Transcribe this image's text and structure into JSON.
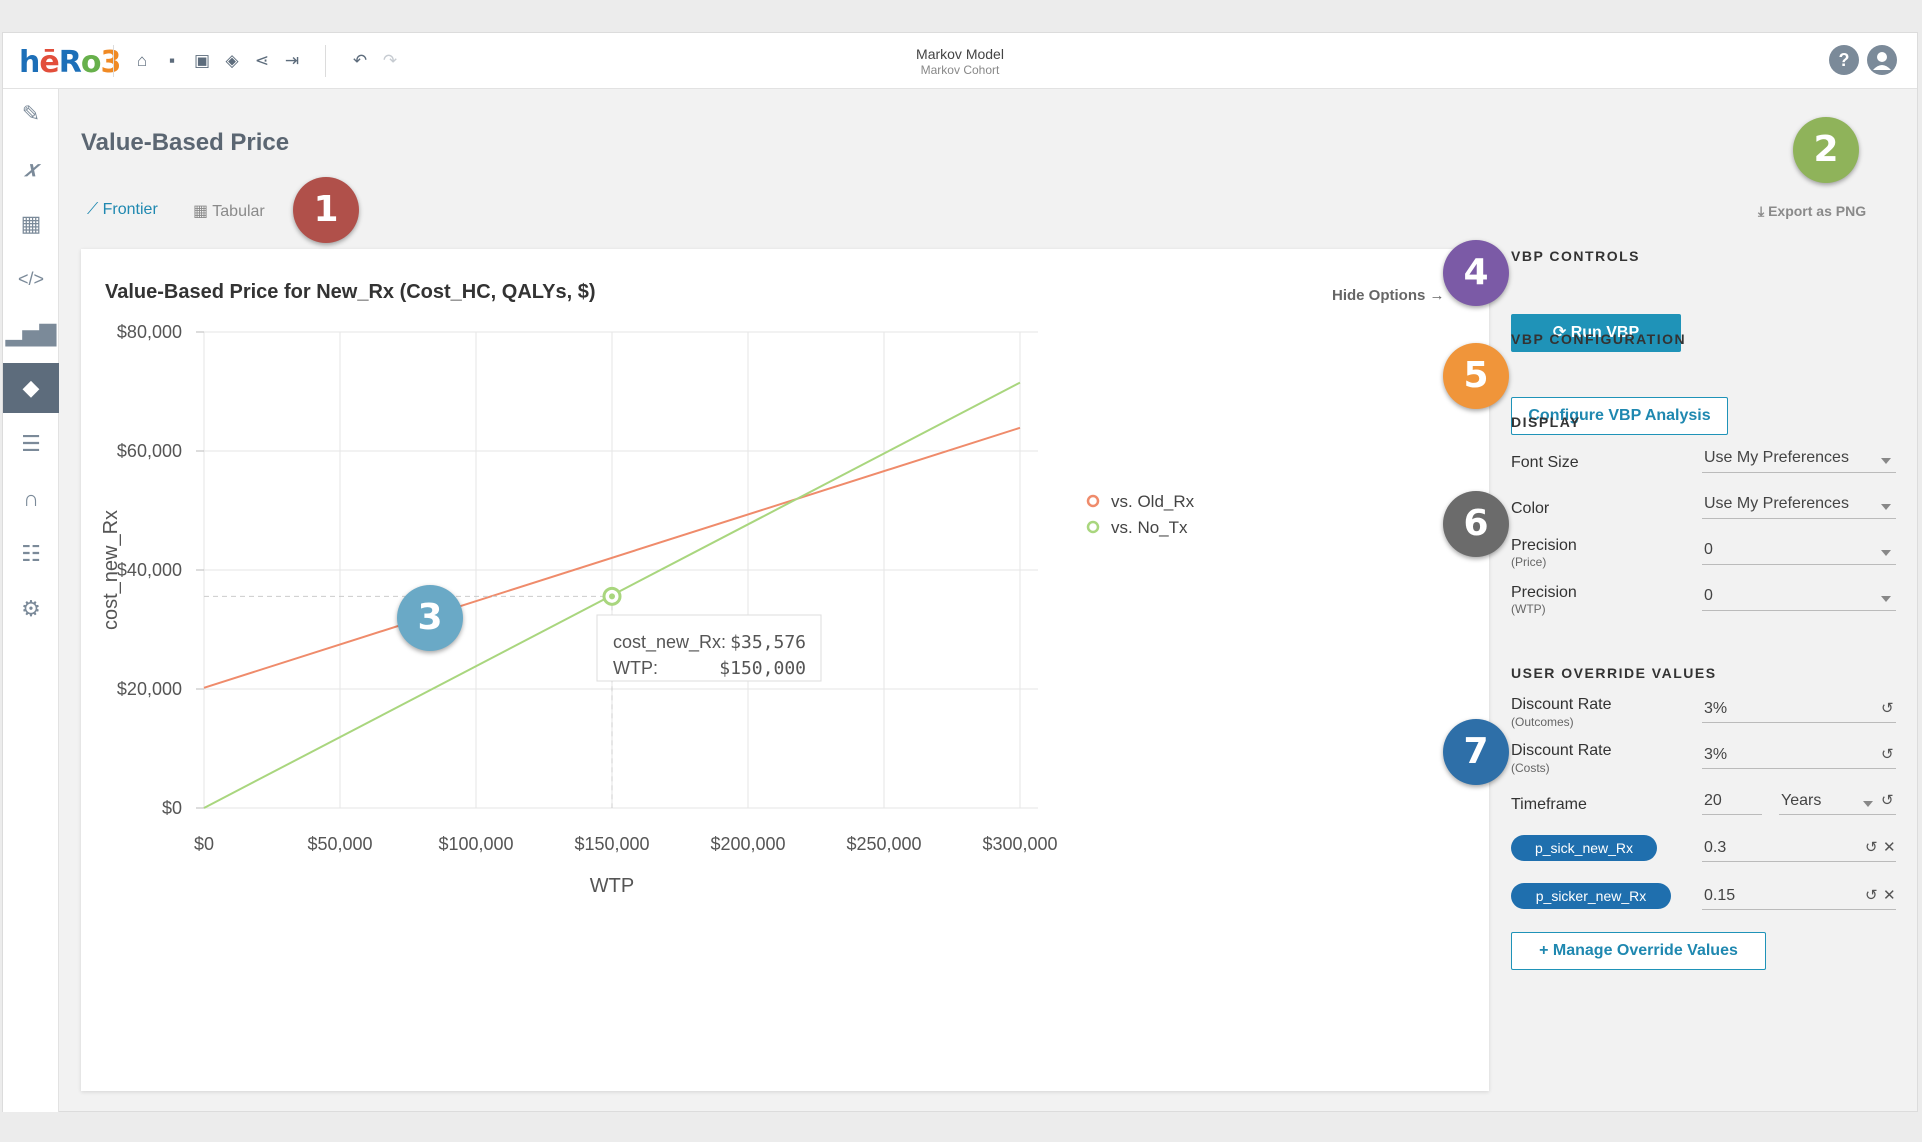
{
  "header": {
    "logo": {
      "h": "h",
      "e": "ē",
      "r": "R",
      "o": "o",
      "three": "3"
    },
    "title": "Markov Model",
    "subtitle": "Markov Cohort",
    "icons": [
      "home-icon",
      "save-icon",
      "save-as-icon",
      "layers-icon",
      "share-icon",
      "export-icon",
      "undo-icon",
      "redo-icon"
    ],
    "help": "?"
  },
  "rail": [
    "pencil-icon",
    "function-icon",
    "table-icon",
    "code-icon",
    "bar-chart-icon",
    "tag-icon",
    "filter-icon",
    "curve-icon",
    "checklist-icon",
    "gear-icon"
  ],
  "page": {
    "title": "Value-Based Price",
    "tabs": [
      {
        "label": "Frontier"
      },
      {
        "label": "Tabular"
      }
    ],
    "export_label": "Export as PNG"
  },
  "markers": [
    "1",
    "2",
    "3",
    "4",
    "5",
    "6",
    "7"
  ],
  "chart": {
    "title": "Value-Based Price for New_Rx (Cost_HC, QALYs, $)",
    "hide_options": "Hide Options →",
    "tooltip": {
      "label1": "cost_new_Rx:",
      "value1": "$35,576",
      "label2": "WTP:",
      "value2": "$150,000"
    }
  },
  "chart_data": {
    "type": "line",
    "xlabel": "WTP",
    "ylabel": "cost_new_Rx",
    "xlim": [
      0,
      300000
    ],
    "ylim": [
      0,
      80000
    ],
    "x_ticks": [
      0,
      50000,
      100000,
      150000,
      200000,
      250000,
      300000
    ],
    "x_tick_labels": [
      "$0",
      "$50,000",
      "$100,000",
      "$150,000",
      "$200,000",
      "$250,000",
      "$300,000"
    ],
    "y_ticks": [
      0,
      20000,
      40000,
      60000,
      80000
    ],
    "y_tick_labels": [
      "$0",
      "$20,000",
      "$40,000",
      "$60,000",
      "$80,000"
    ],
    "grid": true,
    "legend_position": "right",
    "series": [
      {
        "name": "vs. Old_Rx",
        "color": "#ef8b6b",
        "x": [
          0,
          300000
        ],
        "y": [
          20200,
          63900
        ]
      },
      {
        "name": "vs. No_Tx",
        "color": "#a9d67e",
        "x": [
          0,
          300000
        ],
        "y": [
          0,
          71500
        ]
      }
    ],
    "highlight": {
      "x": 150000,
      "y": 35576
    }
  },
  "panel": {
    "controls_head": "VBP CONTROLS",
    "run_label": "⟳ Run VBP",
    "config_head": "VBP CONFIGURATION",
    "config_label": "Configure VBP Analysis",
    "display_head": "DISPLAY",
    "font_size_label": "Font Size",
    "font_size_value": "Use My Preferences",
    "color_label": "Color",
    "color_value": "Use My Preferences",
    "precision_label": "Precision",
    "precision_price_sub": "(Price)",
    "precision_price_value": "0",
    "precision_wtp_sub": "(WTP)",
    "precision_wtp_value": "0",
    "override_head": "USER OVERRIDE VALUES",
    "discount_label": "Discount Rate",
    "discount_outcomes_sub": "(Outcomes)",
    "discount_outcomes_value": "3%",
    "discount_costs_sub": "(Costs)",
    "discount_costs_value": "3%",
    "timeframe_label": "Timeframe",
    "timeframe_value": "20",
    "timeframe_unit": "Years",
    "chip1_label": "p_sick_new_Rx",
    "chip1_value": "0.3",
    "chip2_label": "p_sicker_new_Rx",
    "chip2_value": "0.15",
    "manage_label": "+ Manage Override Values"
  },
  "colors": {
    "accent": "#1f93b8",
    "marker1": "#b0504a",
    "marker2": "#8fb35a",
    "marker3": "#6aa9c6",
    "marker4": "#7b5aa6",
    "marker5": "#f0953a",
    "marker6": "#6b6b6b",
    "marker7": "#2e6fa8"
  }
}
